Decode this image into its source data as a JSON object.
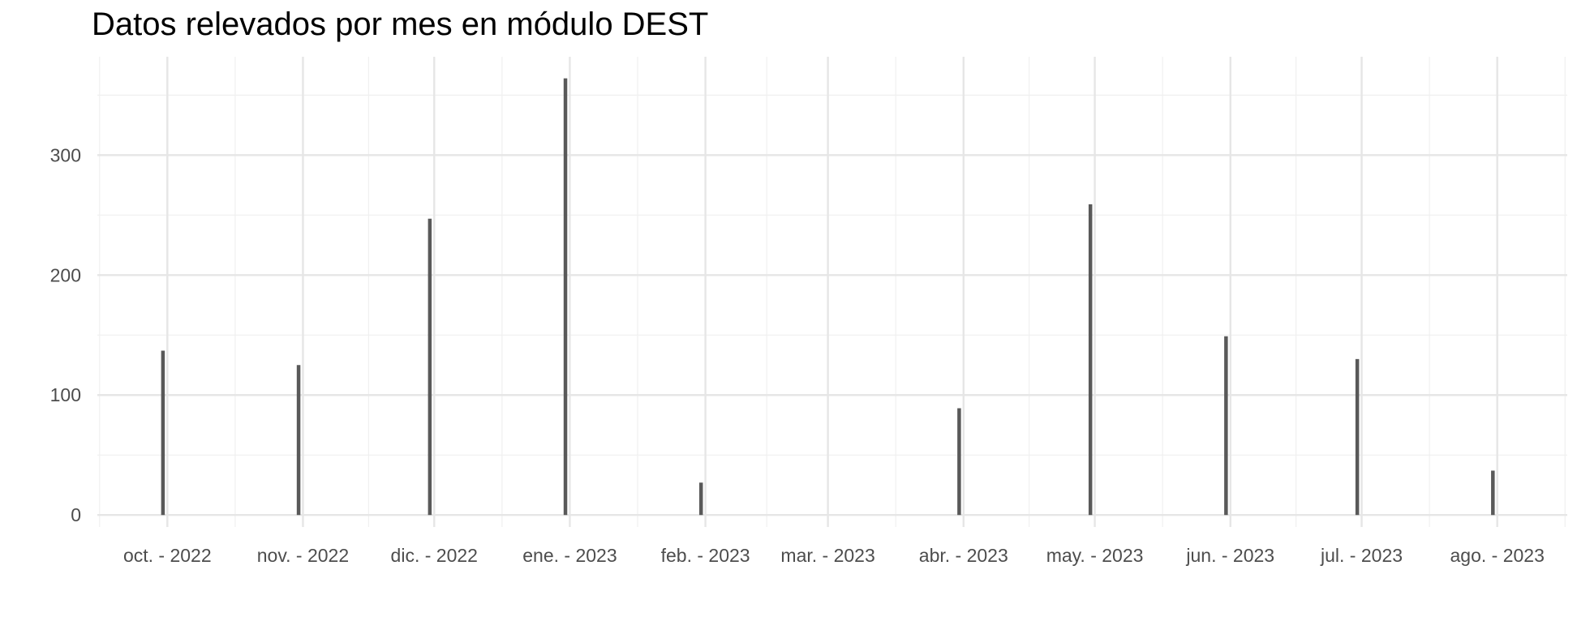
{
  "chart_data": {
    "type": "bar",
    "title": "Datos relevados por mes en módulo DEST",
    "xlabel": "",
    "ylabel": "",
    "x_axis_type": "date",
    "x_tick_labels": [
      "oct. - 2022",
      "nov. - 2022",
      "dic. - 2022",
      "ene. - 2023",
      "feb. - 2023",
      "mar. - 2023",
      "abr. - 2023",
      "may. - 2023",
      "jun. - 2023",
      "jul. - 2023",
      "ago. - 2023"
    ],
    "x_tick_dates": [
      "2022-10-01",
      "2022-11-01",
      "2022-12-01",
      "2023-01-01",
      "2023-02-01",
      "2023-03-01",
      "2023-04-01",
      "2023-05-01",
      "2023-06-01",
      "2023-07-01",
      "2023-08-01"
    ],
    "x_range": [
      "2022-09-15",
      "2023-08-17"
    ],
    "y_ticks": [
      0,
      100,
      200,
      300
    ],
    "ylim": [
      -10,
      382
    ],
    "grid": true,
    "legend": "none",
    "bar_color": "#595959",
    "points": [
      {
        "date": "2022-09-30",
        "value": 137
      },
      {
        "date": "2022-10-31",
        "value": 125
      },
      {
        "date": "2022-11-30",
        "value": 247
      },
      {
        "date": "2022-12-31",
        "value": 364
      },
      {
        "date": "2023-01-31",
        "value": 27
      },
      {
        "date": "2023-03-31",
        "value": 89
      },
      {
        "date": "2023-04-30",
        "value": 259
      },
      {
        "date": "2023-05-31",
        "value": 149
      },
      {
        "date": "2023-06-30",
        "value": 130
      },
      {
        "date": "2023-07-31",
        "value": 37
      }
    ]
  }
}
